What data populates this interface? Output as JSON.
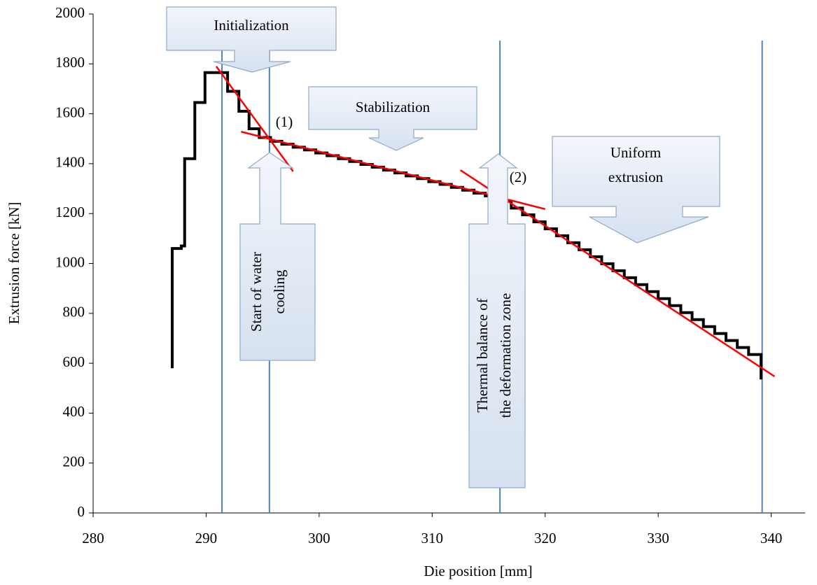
{
  "chart_data": {
    "type": "line",
    "x_label": "Die position  [mm]",
    "y_label": "Extrusion force [kN]",
    "xlim": [
      280,
      343
    ],
    "ylim": [
      0,
      2000
    ],
    "xticks": [
      280,
      290,
      300,
      310,
      320,
      330,
      340
    ],
    "yticks": [
      0,
      200,
      400,
      600,
      800,
      1000,
      1200,
      1400,
      1600,
      1800,
      2000
    ],
    "series": [
      {
        "color": "#000000",
        "width": 4,
        "x": [
          287,
          287,
          287.8,
          287.8,
          288.1,
          288.1,
          289,
          289,
          289.9,
          289.9,
          291.9,
          291.9,
          292.9,
          292.9,
          293.8,
          293.8,
          294.7,
          294.7,
          295.7,
          295.7,
          296.7,
          296.7,
          297.7,
          297.7,
          298.7,
          298.7,
          299.7,
          299.7,
          300.7,
          300.7,
          301.7,
          301.7,
          302.7,
          302.7,
          303.7,
          303.7,
          304.7,
          304.7,
          305.7,
          305.7,
          306.7,
          306.7,
          307.7,
          307.7,
          308.7,
          308.7,
          309.7,
          309.7,
          310.7,
          310.7,
          311.7,
          311.7,
          312.7,
          312.7,
          313.7,
          313.7,
          314.7,
          314.7,
          316,
          316,
          317,
          317,
          318,
          318,
          319,
          319,
          320,
          320,
          321,
          321,
          322,
          322,
          323,
          323,
          324,
          324,
          325,
          325,
          326,
          326,
          327,
          327,
          328,
          328,
          329,
          329,
          330,
          330,
          331,
          331,
          332,
          332,
          333,
          333,
          334,
          334,
          335,
          335,
          336,
          336,
          337,
          337,
          338,
          338,
          339.1,
          339.1
        ],
        "values": [
          580,
          1060,
          1060,
          1070,
          1070,
          1420,
          1420,
          1645,
          1645,
          1765,
          1765,
          1690,
          1690,
          1610,
          1610,
          1540,
          1540,
          1505,
          1505,
          1490,
          1490,
          1478,
          1478,
          1466,
          1466,
          1455,
          1455,
          1443,
          1443,
          1432,
          1432,
          1420,
          1420,
          1409,
          1409,
          1397,
          1397,
          1386,
          1386,
          1374,
          1374,
          1363,
          1363,
          1351,
          1351,
          1340,
          1340,
          1328,
          1328,
          1317,
          1317,
          1305,
          1305,
          1294,
          1294,
          1282,
          1282,
          1271,
          1271,
          1250,
          1250,
          1222,
          1222,
          1195,
          1195,
          1167,
          1167,
          1139,
          1139,
          1111,
          1111,
          1083,
          1083,
          1055,
          1055,
          1027,
          1027,
          999,
          999,
          971,
          971,
          943,
          943,
          915,
          915,
          887,
          887,
          859,
          859,
          831,
          831,
          803,
          803,
          775,
          775,
          747,
          747,
          719,
          719,
          691,
          691,
          663,
          663,
          635,
          635,
          535
        ]
      },
      {
        "color": "#ff0000",
        "width": 2.5,
        "x": [
          290.9,
          297.7
        ],
        "values": [
          1790,
          1369
        ]
      },
      {
        "color": "#ff0000",
        "width": 2.5,
        "x": [
          293.1,
          320
        ],
        "values": [
          1528,
          1218
        ]
      },
      {
        "color": "#ff0000",
        "width": 2.5,
        "x": [
          312.5,
          340.3
        ],
        "values": [
          1374,
          547
        ]
      }
    ],
    "vlines": {
      "color": "#4f81bd",
      "x": [
        291.4,
        295.6,
        316,
        339.2
      ]
    },
    "annotations": {
      "initialization": "Initialization",
      "stabilization": "Stabilization",
      "uniform": [
        "Uniform",
        "extrusion"
      ],
      "water": [
        "Start of water",
        "cooling"
      ],
      "thermal": [
        "Thermal balance of",
        "the deformation zone"
      ],
      "point1": "(1)",
      "point2": "(2)"
    }
  }
}
